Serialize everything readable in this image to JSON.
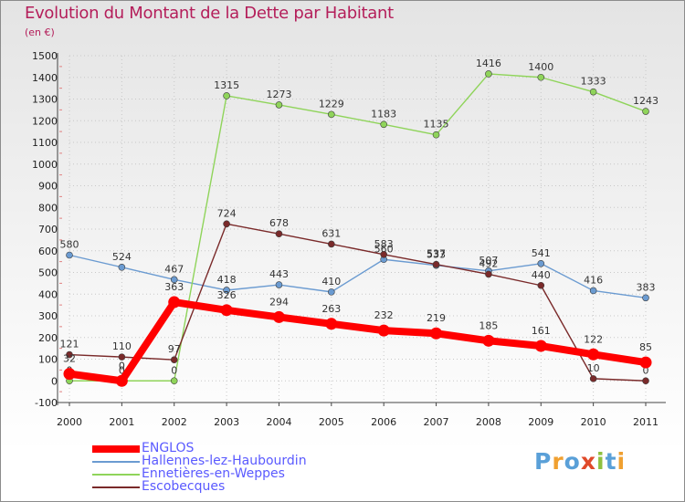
{
  "chart_data": {
    "type": "line",
    "title": "Evolution du Montant de la Dette par Habitant",
    "subtitle": "(en €)",
    "xlabel": "",
    "ylabel": "",
    "categories": [
      "2000",
      "2001",
      "2002",
      "2003",
      "2004",
      "2005",
      "2006",
      "2007",
      "2008",
      "2009",
      "2010",
      "2011"
    ],
    "ylim": [
      -100,
      1500
    ],
    "yticks": [
      -100,
      0,
      100,
      200,
      300,
      400,
      500,
      600,
      700,
      800,
      900,
      1000,
      1100,
      1200,
      1300,
      1400,
      1500
    ],
    "grid": true,
    "legend_position": "bottom-left",
    "series": [
      {
        "name": "ENGLOS",
        "color": "#ff0000",
        "values": [
          32,
          0,
          363,
          326,
          294,
          263,
          232,
          219,
          185,
          161,
          122,
          85
        ]
      },
      {
        "name": "Hallennes-lez-Haubourdin",
        "color": "#6b9bd1",
        "values": [
          580,
          524,
          467,
          418,
          443,
          410,
          560,
          533,
          507,
          541,
          416,
          383
        ]
      },
      {
        "name": "Ennetières-en-Weppes",
        "color": "#8fd45a",
        "values": [
          0,
          0,
          0,
          1315,
          1273,
          1229,
          1183,
          1135,
          1416,
          1400,
          1333,
          1243
        ]
      },
      {
        "name": "Escobecques",
        "color": "#7a2a2a",
        "values": [
          121,
          110,
          97,
          724,
          678,
          631,
          583,
          537,
          492,
          440,
          10,
          0
        ]
      }
    ]
  },
  "logo": {
    "text": "Proxiti",
    "colors": [
      "#5aa0d8",
      "#f0a030",
      "#5aa0d8",
      "#e04a2a",
      "#8fc040",
      "#5aa0d8",
      "#f0a030"
    ]
  }
}
